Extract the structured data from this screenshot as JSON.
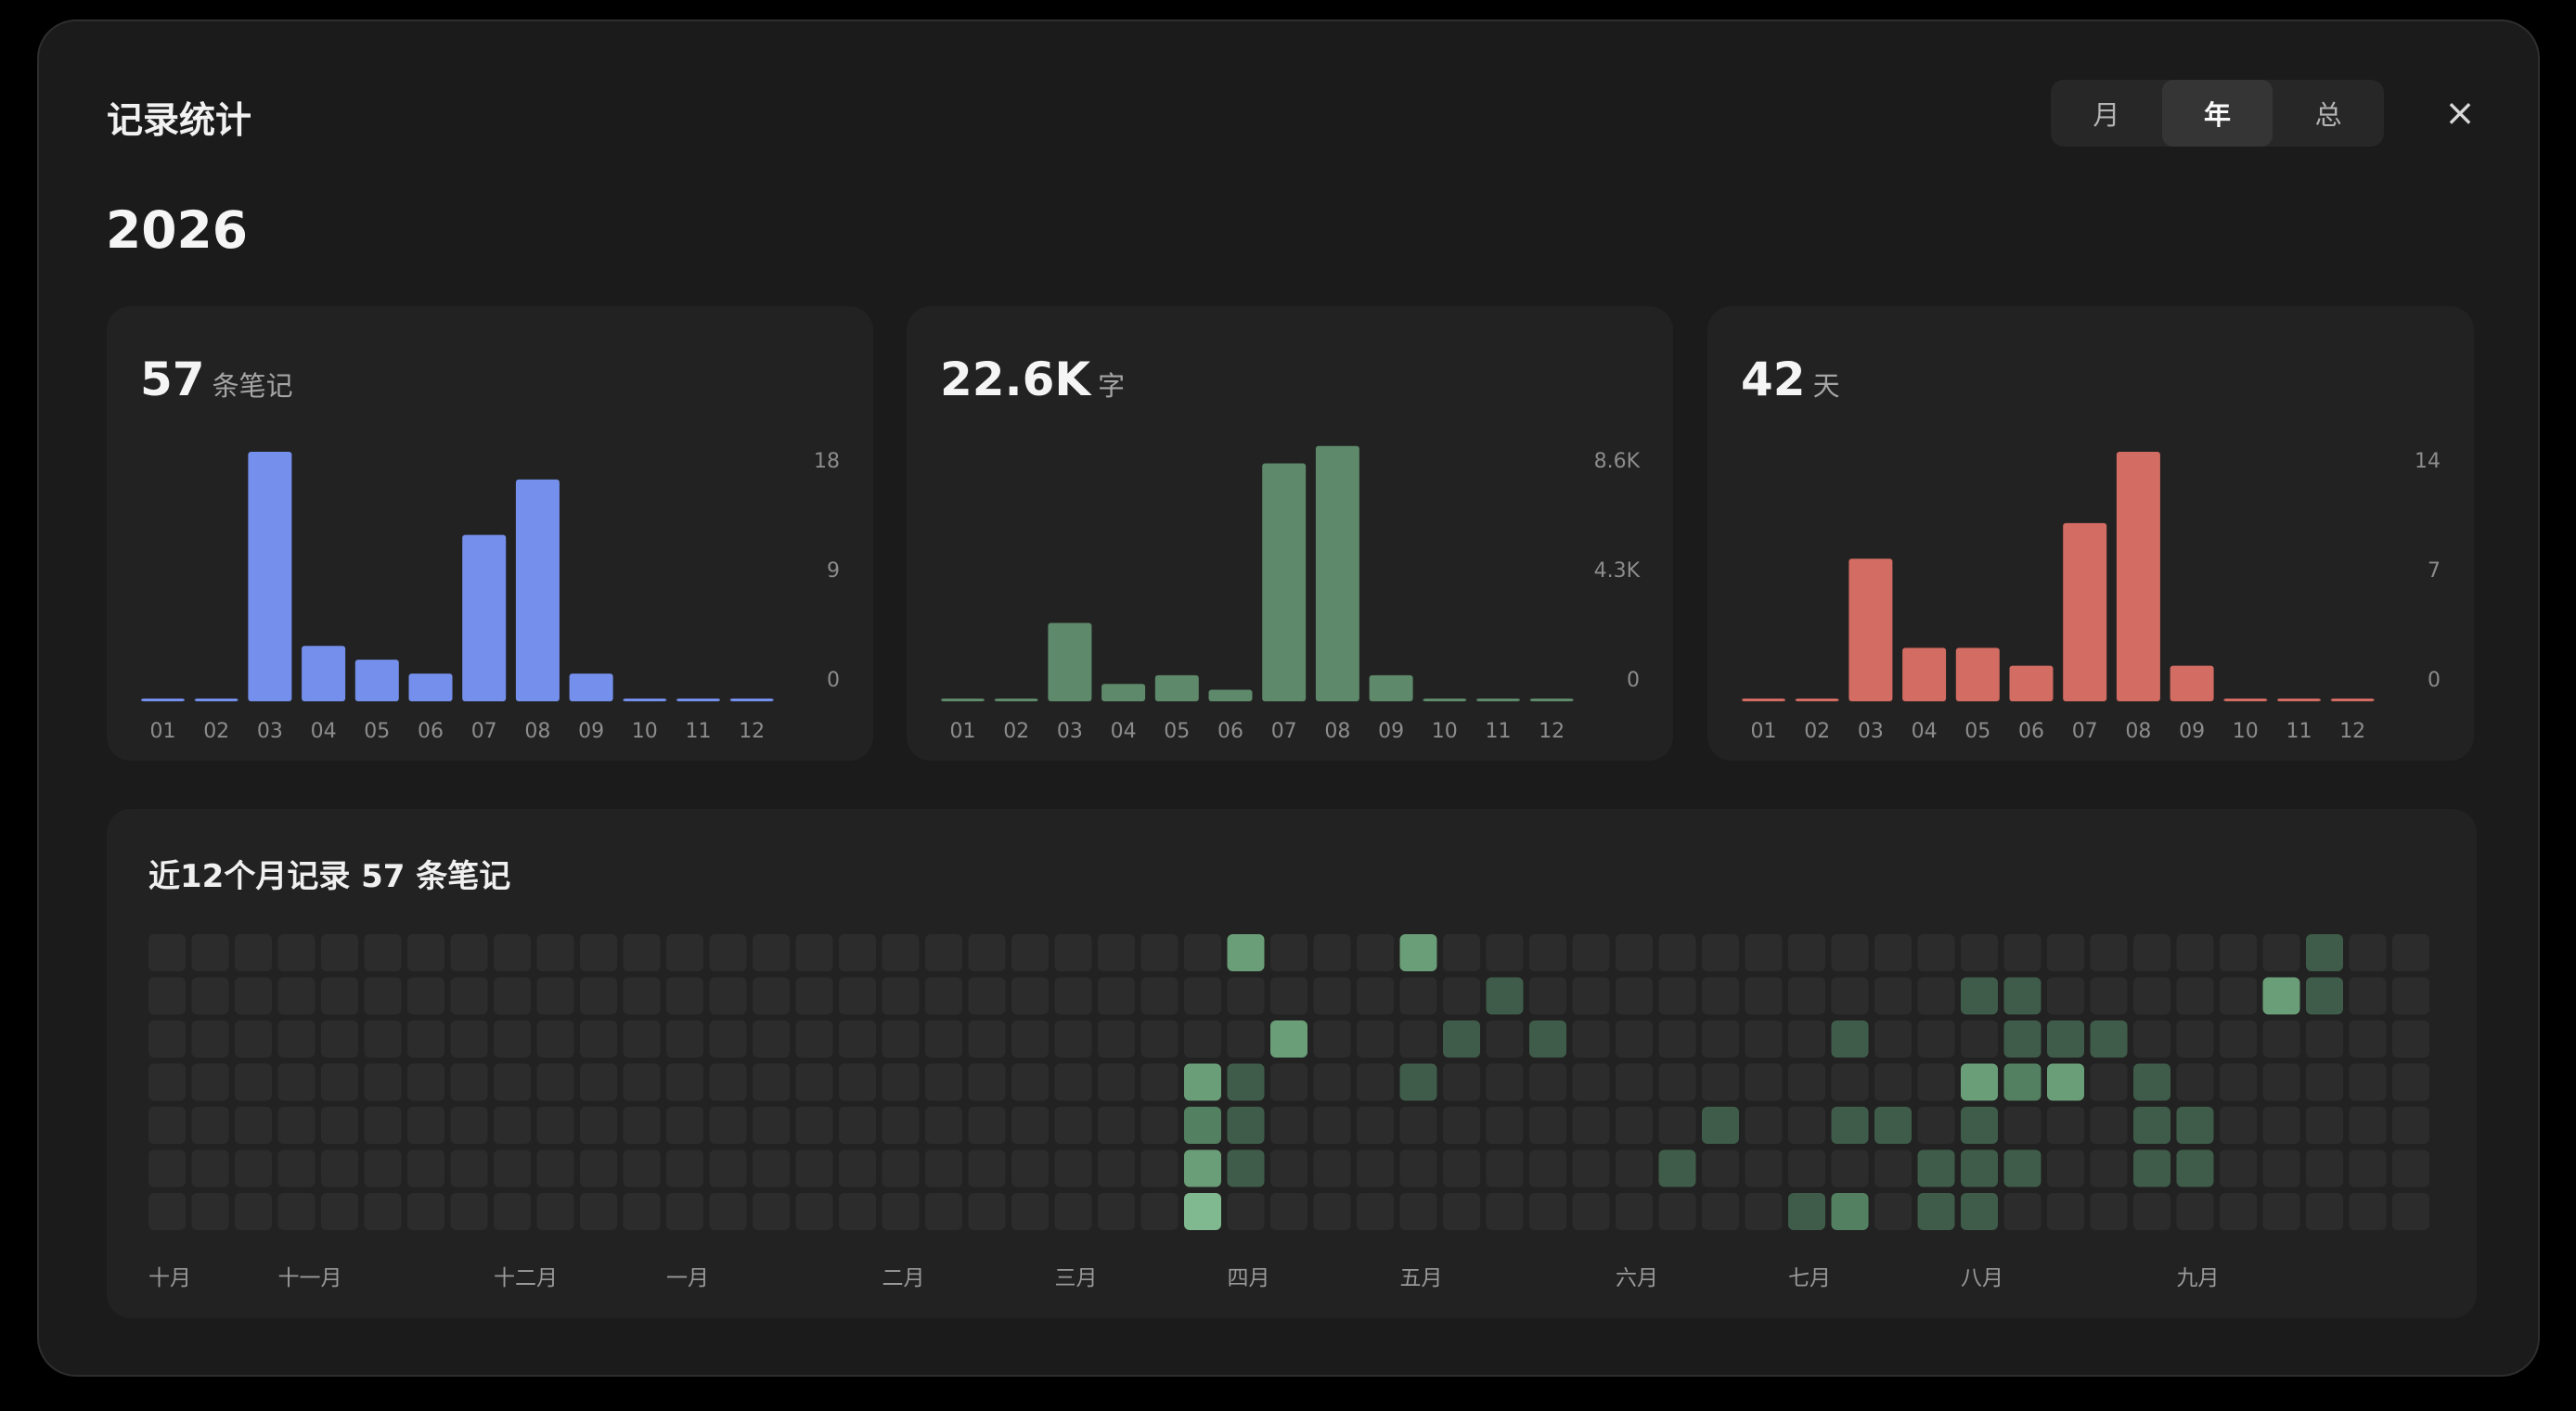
{
  "title": "记录统计",
  "tabs": [
    {
      "label": "月",
      "active": false
    },
    {
      "label": "年",
      "active": true
    },
    {
      "label": "总",
      "active": false
    }
  ],
  "close_icon": "×",
  "year": "2026",
  "cards": [
    {
      "stat": "57",
      "unit": "条笔记",
      "color": "#7590ec",
      "chart_data": {
        "type": "bar",
        "categories": [
          "01",
          "02",
          "03",
          "04",
          "05",
          "06",
          "07",
          "08",
          "09",
          "10",
          "11",
          "12"
        ],
        "values": [
          0,
          0,
          18,
          4,
          3,
          2,
          12,
          16,
          2,
          0,
          0,
          0
        ],
        "ylim": [
          0,
          18
        ],
        "yticks": [
          "18",
          "9",
          "0"
        ]
      }
    },
    {
      "stat": "22.6K",
      "unit": "字",
      "color": "#5e896a",
      "chart_data": {
        "type": "bar",
        "categories": [
          "01",
          "02",
          "03",
          "04",
          "05",
          "06",
          "07",
          "08",
          "09",
          "10",
          "11",
          "12"
        ],
        "values": [
          0,
          0,
          2.7,
          0.6,
          0.9,
          0.4,
          8.2,
          8.8,
          0.9,
          0,
          0,
          0
        ],
        "ylim": [
          0,
          8.6
        ],
        "yticks": [
          "8.6K",
          "4.3K",
          "0"
        ]
      }
    },
    {
      "stat": "42",
      "unit": "天",
      "color": "#d36c62",
      "chart_data": {
        "type": "bar",
        "categories": [
          "01",
          "02",
          "03",
          "04",
          "05",
          "06",
          "07",
          "08",
          "09",
          "10",
          "11",
          "12"
        ],
        "values": [
          0,
          0,
          8,
          3,
          3,
          2,
          10,
          14,
          2,
          0,
          0,
          0
        ],
        "ylim": [
          0,
          14
        ],
        "yticks": [
          "14",
          "7",
          "0"
        ]
      }
    }
  ],
  "heatmap": {
    "title": "近12个月记录 57 条笔记",
    "weeks": 53,
    "days": 7,
    "colors": [
      "#2c2c2c",
      "#3e5c49",
      "#538060",
      "#6a9e78",
      "#80b98f"
    ],
    "cells": [
      [
        24,
        3,
        3
      ],
      [
        24,
        4,
        2
      ],
      [
        24,
        5,
        3
      ],
      [
        24,
        6,
        4
      ],
      [
        25,
        0,
        3
      ],
      [
        25,
        3,
        1
      ],
      [
        25,
        4,
        1
      ],
      [
        25,
        5,
        1
      ],
      [
        26,
        2,
        3
      ],
      [
        29,
        0,
        3
      ],
      [
        29,
        3,
        1
      ],
      [
        30,
        2,
        1
      ],
      [
        31,
        1,
        1
      ],
      [
        32,
        2,
        1
      ],
      [
        35,
        5,
        1
      ],
      [
        36,
        4,
        1
      ],
      [
        38,
        6,
        1
      ],
      [
        39,
        2,
        1
      ],
      [
        39,
        4,
        1
      ],
      [
        39,
        6,
        2
      ],
      [
        40,
        4,
        1
      ],
      [
        41,
        5,
        1
      ],
      [
        41,
        6,
        1
      ],
      [
        42,
        1,
        1
      ],
      [
        42,
        3,
        3
      ],
      [
        42,
        4,
        1
      ],
      [
        42,
        5,
        1
      ],
      [
        42,
        6,
        1
      ],
      [
        43,
        1,
        1
      ],
      [
        43,
        2,
        1
      ],
      [
        43,
        3,
        2
      ],
      [
        43,
        5,
        1
      ],
      [
        44,
        2,
        1
      ],
      [
        44,
        3,
        3
      ],
      [
        45,
        2,
        1
      ],
      [
        46,
        3,
        1
      ],
      [
        46,
        4,
        1
      ],
      [
        46,
        5,
        1
      ],
      [
        47,
        4,
        1
      ],
      [
        47,
        5,
        1
      ],
      [
        49,
        1,
        3
      ],
      [
        50,
        0,
        1
      ],
      [
        50,
        1,
        1
      ]
    ],
    "month_labels": [
      {
        "label": "十月",
        "week": 0
      },
      {
        "label": "十一月",
        "week": 3
      },
      {
        "label": "十二月",
        "week": 8
      },
      {
        "label": "一月",
        "week": 12
      },
      {
        "label": "二月",
        "week": 17
      },
      {
        "label": "三月",
        "week": 21
      },
      {
        "label": "四月",
        "week": 25
      },
      {
        "label": "五月",
        "week": 29
      },
      {
        "label": "六月",
        "week": 34
      },
      {
        "label": "七月",
        "week": 38
      },
      {
        "label": "八月",
        "week": 42
      },
      {
        "label": "九月",
        "week": 47
      }
    ]
  }
}
